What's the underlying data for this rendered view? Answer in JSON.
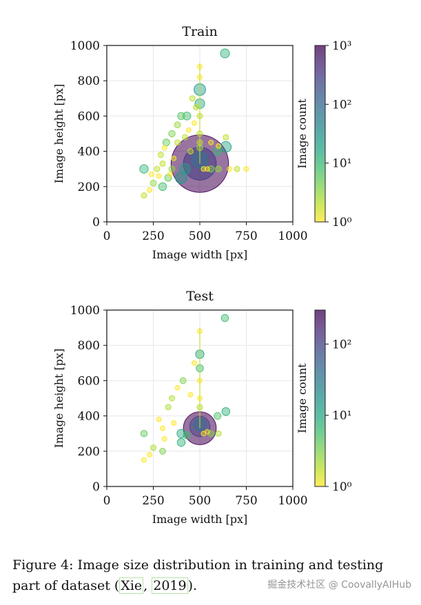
{
  "chart_data": [
    {
      "type": "scatter",
      "title": "Train",
      "xlabel": "Image width [px]",
      "ylabel": "Image height [px]",
      "xlim": [
        0,
        1000
      ],
      "ylim": [
        0,
        1000
      ],
      "xticks": [
        0,
        250,
        500,
        750,
        1000
      ],
      "yticks": [
        0,
        200,
        400,
        600,
        800,
        1000
      ],
      "grid": true,
      "colorbar": {
        "label": "Image count",
        "scale": "log",
        "range": [
          1,
          1000
        ],
        "ticks": [
          "10⁰",
          "10¹",
          "10²",
          "10³"
        ],
        "colormap": "viridis_r"
      },
      "points": [
        {
          "x": 500,
          "y": 330,
          "count": 1000
        },
        {
          "x": 500,
          "y": 330,
          "count": 300
        },
        {
          "x": 500,
          "y": 350,
          "count": 60
        },
        {
          "x": 635,
          "y": 955,
          "count": 12
        },
        {
          "x": 500,
          "y": 750,
          "count": 25
        },
        {
          "x": 500,
          "y": 670,
          "count": 15
        },
        {
          "x": 640,
          "y": 425,
          "count": 20
        },
        {
          "x": 595,
          "y": 400,
          "count": 10
        },
        {
          "x": 200,
          "y": 300,
          "count": 10
        },
        {
          "x": 400,
          "y": 250,
          "count": 25
        },
        {
          "x": 420,
          "y": 300,
          "count": 20
        },
        {
          "x": 300,
          "y": 200,
          "count": 8
        },
        {
          "x": 330,
          "y": 250,
          "count": 5
        },
        {
          "x": 430,
          "y": 600,
          "count": 8
        },
        {
          "x": 400,
          "y": 600,
          "count": 6
        },
        {
          "x": 320,
          "y": 450,
          "count": 5
        },
        {
          "x": 350,
          "y": 500,
          "count": 4
        },
        {
          "x": 380,
          "y": 550,
          "count": 3
        },
        {
          "x": 250,
          "y": 220,
          "count": 3
        },
        {
          "x": 560,
          "y": 300,
          "count": 4
        },
        {
          "x": 600,
          "y": 300,
          "count": 3
        },
        {
          "x": 700,
          "y": 300,
          "count": 2
        },
        {
          "x": 200,
          "y": 150,
          "count": 2
        },
        {
          "x": 350,
          "y": 300,
          "count": 3
        },
        {
          "x": 450,
          "y": 400,
          "count": 2
        },
        {
          "x": 500,
          "y": 500,
          "count": 2
        },
        {
          "x": 500,
          "y": 450,
          "count": 2
        },
        {
          "x": 500,
          "y": 420,
          "count": 3
        },
        {
          "x": 500,
          "y": 600,
          "count": 2
        },
        {
          "x": 480,
          "y": 650,
          "count": 2
        },
        {
          "x": 460,
          "y": 700,
          "count": 2
        },
        {
          "x": 300,
          "y": 330,
          "count": 2
        },
        {
          "x": 270,
          "y": 300,
          "count": 2
        },
        {
          "x": 290,
          "y": 380,
          "count": 2
        },
        {
          "x": 380,
          "y": 450,
          "count": 2
        },
        {
          "x": 420,
          "y": 480,
          "count": 2
        },
        {
          "x": 640,
          "y": 480,
          "count": 2
        },
        {
          "x": 230,
          "y": 180,
          "count": 1
        },
        {
          "x": 280,
          "y": 260,
          "count": 1
        },
        {
          "x": 360,
          "y": 360,
          "count": 1
        },
        {
          "x": 440,
          "y": 520,
          "count": 1
        },
        {
          "x": 470,
          "y": 560,
          "count": 1
        },
        {
          "x": 520,
          "y": 300,
          "count": 1
        },
        {
          "x": 540,
          "y": 300,
          "count": 1
        },
        {
          "x": 660,
          "y": 300,
          "count": 1
        },
        {
          "x": 750,
          "y": 300,
          "count": 1
        },
        {
          "x": 500,
          "y": 820,
          "count": 1
        },
        {
          "x": 500,
          "y": 880,
          "count": 1
        },
        {
          "x": 240,
          "y": 270,
          "count": 1
        },
        {
          "x": 310,
          "y": 420,
          "count": 1
        },
        {
          "x": 340,
          "y": 270,
          "count": 1
        },
        {
          "x": 560,
          "y": 450,
          "count": 1
        },
        {
          "x": 600,
          "y": 430,
          "count": 1
        }
      ]
    },
    {
      "type": "scatter",
      "title": "Test",
      "xlabel": "Image width [px]",
      "ylabel": "Image height [px]",
      "xlim": [
        0,
        1000
      ],
      "ylim": [
        0,
        1000
      ],
      "xticks": [
        0,
        250,
        500,
        750,
        1000
      ],
      "yticks": [
        0,
        200,
        400,
        600,
        800,
        1000
      ],
      "grid": true,
      "colorbar": {
        "label": "Image count",
        "scale": "log",
        "range": [
          1,
          300
        ],
        "ticks": [
          "10⁰",
          "10¹",
          "10²"
        ],
        "colormap": "viridis_r"
      },
      "points": [
        {
          "x": 500,
          "y": 330,
          "count": 300
        },
        {
          "x": 500,
          "y": 340,
          "count": 100
        },
        {
          "x": 500,
          "y": 350,
          "count": 30
        },
        {
          "x": 635,
          "y": 955,
          "count": 6
        },
        {
          "x": 500,
          "y": 750,
          "count": 10
        },
        {
          "x": 500,
          "y": 670,
          "count": 6
        },
        {
          "x": 640,
          "y": 425,
          "count": 8
        },
        {
          "x": 595,
          "y": 400,
          "count": 5
        },
        {
          "x": 200,
          "y": 300,
          "count": 4
        },
        {
          "x": 400,
          "y": 250,
          "count": 8
        },
        {
          "x": 400,
          "y": 300,
          "count": 10
        },
        {
          "x": 430,
          "y": 290,
          "count": 6
        },
        {
          "x": 300,
          "y": 200,
          "count": 3
        },
        {
          "x": 410,
          "y": 600,
          "count": 3
        },
        {
          "x": 350,
          "y": 500,
          "count": 2
        },
        {
          "x": 330,
          "y": 450,
          "count": 2
        },
        {
          "x": 560,
          "y": 300,
          "count": 3
        },
        {
          "x": 600,
          "y": 300,
          "count": 2
        },
        {
          "x": 250,
          "y": 220,
          "count": 2
        },
        {
          "x": 200,
          "y": 150,
          "count": 1
        },
        {
          "x": 300,
          "y": 330,
          "count": 1
        },
        {
          "x": 280,
          "y": 380,
          "count": 1
        },
        {
          "x": 380,
          "y": 560,
          "count": 1
        },
        {
          "x": 450,
          "y": 520,
          "count": 1
        },
        {
          "x": 500,
          "y": 500,
          "count": 1
        },
        {
          "x": 500,
          "y": 450,
          "count": 2
        },
        {
          "x": 500,
          "y": 600,
          "count": 1
        },
        {
          "x": 500,
          "y": 880,
          "count": 1
        },
        {
          "x": 230,
          "y": 180,
          "count": 1
        },
        {
          "x": 360,
          "y": 360,
          "count": 1
        },
        {
          "x": 520,
          "y": 300,
          "count": 1
        },
        {
          "x": 540,
          "y": 310,
          "count": 1
        },
        {
          "x": 470,
          "y": 700,
          "count": 1
        },
        {
          "x": 310,
          "y": 270,
          "count": 1
        }
      ]
    }
  ],
  "caption": {
    "prefix": "Figure 4: Image size distribution in training and testing part of dataset (",
    "cite_author": "Xie",
    "comma": ", ",
    "cite_year": "2019",
    "suffix": ")."
  },
  "watermark": "掘金技术社区 @ CoovallyAIHub"
}
